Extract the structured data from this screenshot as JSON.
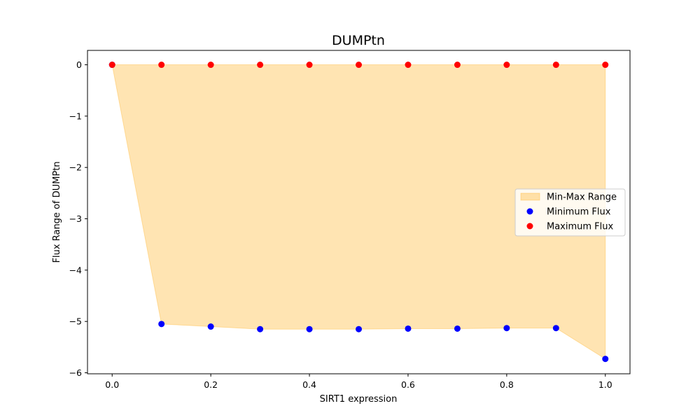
{
  "chart_data": {
    "type": "scatter",
    "title": "DUMPtn",
    "xlabel": "SIRT1 expression",
    "ylabel": "Flux Range of DUMPtn",
    "xlim": [
      -0.05,
      1.05
    ],
    "ylim": [
      -6.02,
      0.28
    ],
    "x_ticks": [
      0.0,
      0.2,
      0.4,
      0.6,
      0.8,
      1.0
    ],
    "x_tick_labels": [
      "0.0",
      "0.2",
      "0.4",
      "0.6",
      "0.8",
      "1.0"
    ],
    "y_ticks": [
      0,
      -1,
      -2,
      -3,
      -4,
      -5,
      -6
    ],
    "y_tick_labels": [
      "0",
      "−1",
      "−2",
      "−3",
      "−4",
      "−5",
      "−6"
    ],
    "x": [
      0.0,
      0.1,
      0.2,
      0.3,
      0.4,
      0.5,
      0.6,
      0.7,
      0.8,
      0.9,
      1.0
    ],
    "series": [
      {
        "name": "Minimum Flux",
        "color": "#0000ff",
        "values": [
          0.0,
          -5.05,
          -5.1,
          -5.15,
          -5.15,
          -5.15,
          -5.14,
          -5.14,
          -5.13,
          -5.13,
          -5.73
        ]
      },
      {
        "name": "Maximum Flux",
        "color": "#ff0000",
        "values": [
          0.0,
          0.0,
          0.0,
          0.0,
          0.0,
          0.0,
          0.0,
          0.0,
          0.0,
          0.0,
          0.0
        ]
      }
    ],
    "fill": {
      "name": "Min-Max Range",
      "color": "#ffa500",
      "opacity": 0.3
    },
    "legend": {
      "position": "center-right",
      "entries": [
        {
          "label": "Min-Max Range",
          "kind": "patch",
          "color": "#ffa500"
        },
        {
          "label": "Minimum Flux",
          "kind": "marker",
          "color": "#0000ff"
        },
        {
          "label": "Maximum Flux",
          "kind": "marker",
          "color": "#ff0000"
        }
      ]
    },
    "grid": false
  }
}
